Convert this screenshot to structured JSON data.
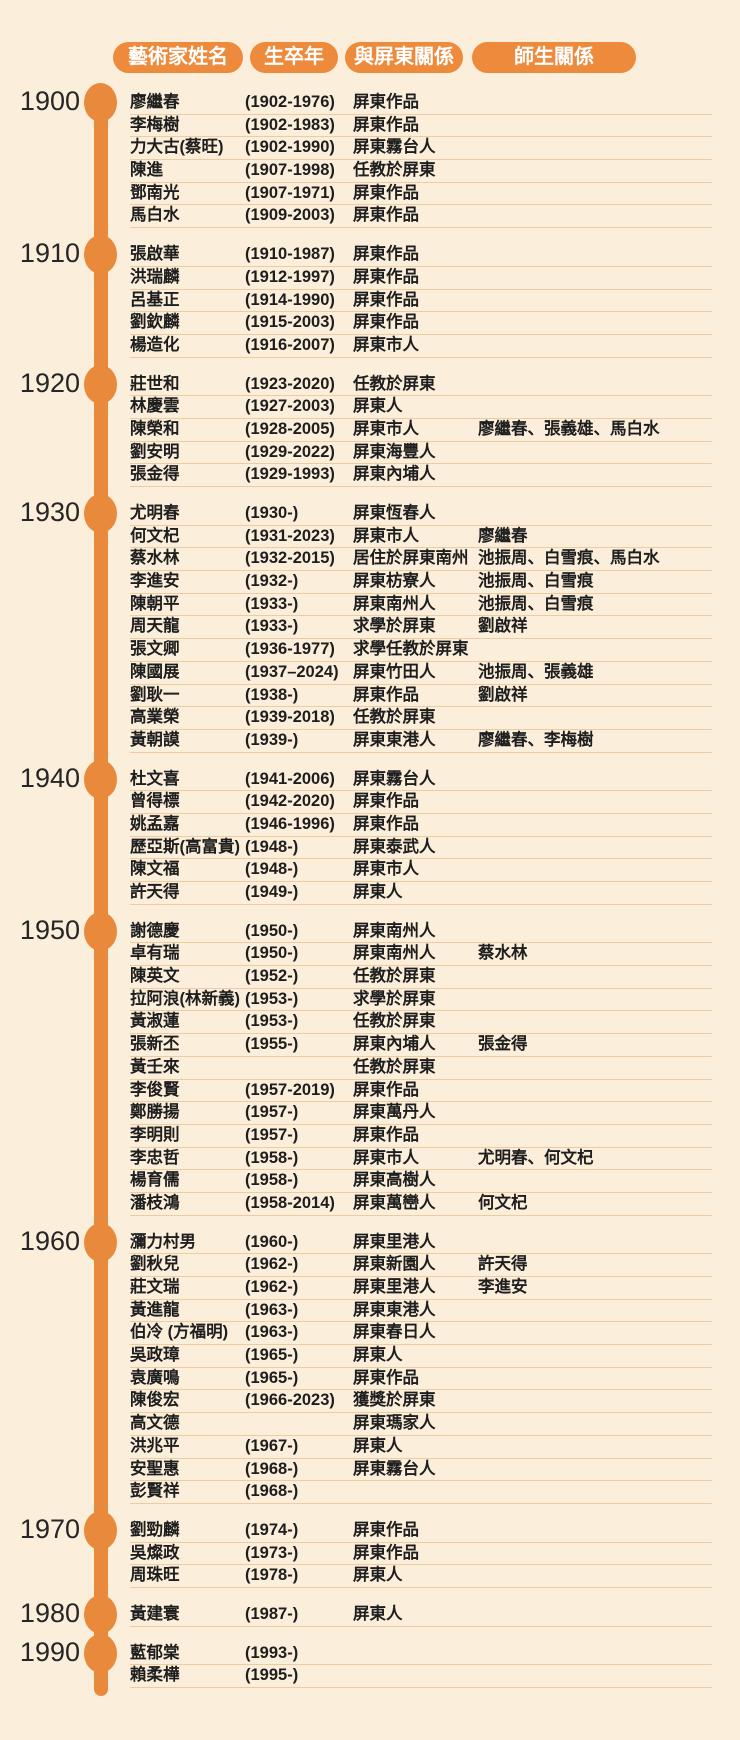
{
  "colors": {
    "background": "#FBEEDB",
    "pill_accent": "#ED8A3C",
    "timeline_accent": "#E8893C",
    "separator_line": "#EFCBA0",
    "text": "#1E1E1E",
    "year_label": "#262626"
  },
  "header": {
    "columns": [
      "藝術家姓名",
      "生卒年",
      "與屏東關係",
      "師生關係"
    ]
  },
  "timeline": {
    "decades": [
      {
        "decade": "1900",
        "rows": [
          {
            "name": "廖繼春",
            "years": "(1902-1976)",
            "relation": "屏東作品",
            "teachers": ""
          },
          {
            "name": "李梅樹",
            "years": "(1902-1983)",
            "relation": "屏東作品",
            "teachers": ""
          },
          {
            "name": "力大古(蔡旺)",
            "years": "(1902-1990)",
            "relation": "屏東霧台人",
            "teachers": ""
          },
          {
            "name": "陳進",
            "years": "(1907-1998)",
            "relation": "任教於屏東",
            "teachers": ""
          },
          {
            "name": "鄧南光",
            "years": "(1907-1971)",
            "relation": "屏東作品",
            "teachers": ""
          },
          {
            "name": "馬白水",
            "years": "(1909-2003)",
            "relation": "屏東作品",
            "teachers": ""
          }
        ]
      },
      {
        "decade": "1910",
        "rows": [
          {
            "name": "張啟華",
            "years": "(1910-1987)",
            "relation": "屏東作品",
            "teachers": ""
          },
          {
            "name": "洪瑞麟",
            "years": "(1912-1997)",
            "relation": "屏東作品",
            "teachers": ""
          },
          {
            "name": "呂基正",
            "years": "(1914-1990)",
            "relation": "屏東作品",
            "teachers": ""
          },
          {
            "name": "劉欽麟",
            "years": "(1915-2003)",
            "relation": "屏東作品",
            "teachers": ""
          },
          {
            "name": "楊造化",
            "years": "(1916-2007)",
            "relation": "屏東市人",
            "teachers": ""
          }
        ]
      },
      {
        "decade": "1920",
        "rows": [
          {
            "name": "莊世和",
            "years": "(1923-2020)",
            "relation": "任教於屏東",
            "teachers": ""
          },
          {
            "name": "林慶雲",
            "years": "(1927-2003)",
            "relation": "屏東人",
            "teachers": ""
          },
          {
            "name": "陳榮和",
            "years": "(1928-2005)",
            "relation": "屏東市人",
            "teachers": "廖繼春、張義雄、馬白水"
          },
          {
            "name": "劉安明",
            "years": "(1929-2022)",
            "relation": "屏東海豐人",
            "teachers": ""
          },
          {
            "name": "張金得",
            "years": "(1929-1993)",
            "relation": "屏東內埔人",
            "teachers": ""
          }
        ]
      },
      {
        "decade": "1930",
        "rows": [
          {
            "name": "尤明春",
            "years": "(1930-)",
            "relation": "屏東恆春人",
            "teachers": ""
          },
          {
            "name": "何文杞",
            "years": "(1931-2023)",
            "relation": "屏東市人",
            "teachers": "廖繼春"
          },
          {
            "name": "蔡水林",
            "years": "(1932-2015)",
            "relation": "居住於屏東南州",
            "teachers": "池振周、白雪痕、馬白水"
          },
          {
            "name": "李進安",
            "years": "(1932-)",
            "relation": "屏東枋寮人",
            "teachers": "池振周、白雪痕"
          },
          {
            "name": "陳朝平",
            "years": "(1933-)",
            "relation": "屏東南州人",
            "teachers": "池振周、白雪痕"
          },
          {
            "name": "周天龍",
            "years": "(1933-)",
            "relation": "求學於屏東",
            "teachers": "劉啟祥"
          },
          {
            "name": "張文卿",
            "years": "(1936-1977)",
            "relation": "求學任教於屏東",
            "teachers": ""
          },
          {
            "name": "陳國展",
            "years": "(1937–2024)",
            "relation": "屏東竹田人",
            "teachers": "池振周、張義雄"
          },
          {
            "name": "劉耿一",
            "years": "(1938-)",
            "relation": "屏東作品",
            "teachers": "劉啟祥"
          },
          {
            "name": "高業榮",
            "years": "(1939-2018)",
            "relation": "任教於屏東",
            "teachers": ""
          },
          {
            "name": "黃朝謨",
            "years": "(1939-)",
            "relation": "屏東東港人",
            "teachers": "廖繼春、李梅樹"
          }
        ]
      },
      {
        "decade": "1940",
        "rows": [
          {
            "name": "杜文喜",
            "years": "(1941-2006)",
            "relation": "屏東霧台人",
            "teachers": ""
          },
          {
            "name": "曾得標",
            "years": "(1942-2020)",
            "relation": "屏東作品",
            "teachers": ""
          },
          {
            "name": "姚孟嘉",
            "years": "(1946-1996)",
            "relation": "屏東作品",
            "teachers": ""
          },
          {
            "name": "歷亞斯(高富貴)",
            "years": "(1948-)",
            "relation": "屏東泰武人",
            "teachers": ""
          },
          {
            "name": "陳文福",
            "years": "(1948-)",
            "relation": "屏東市人",
            "teachers": ""
          },
          {
            "name": "許天得",
            "years": "(1949-)",
            "relation": "屏東人",
            "teachers": ""
          }
        ]
      },
      {
        "decade": "1950",
        "rows": [
          {
            "name": "謝德慶",
            "years": "(1950-)",
            "relation": "屏東南州人",
            "teachers": ""
          },
          {
            "name": "卓有瑞",
            "years": "(1950-)",
            "relation": "屏東南州人",
            "teachers": "蔡水林"
          },
          {
            "name": "陳英文",
            "years": "(1952-)",
            "relation": "任教於屏東",
            "teachers": ""
          },
          {
            "name": "拉阿浪(林新義)",
            "years": "(1953-)",
            "relation": "求學於屏東",
            "teachers": ""
          },
          {
            "name": "黃淑蓮",
            "years": "(1953-)",
            "relation": "任教於屏東",
            "teachers": ""
          },
          {
            "name": "張新丕",
            "years": "(1955-)",
            "relation": "屏東內埔人",
            "teachers": "張金得"
          },
          {
            "name": "黃壬來",
            "years": "",
            "relation": "任教於屏東",
            "teachers": ""
          },
          {
            "name": "李俊賢",
            "years": "(1957-2019)",
            "relation": "屏東作品",
            "teachers": ""
          },
          {
            "name": "鄭勝揚",
            "years": "(1957-)",
            "relation": "屏東萬丹人",
            "teachers": ""
          },
          {
            "name": "李明則",
            "years": "(1957-)",
            "relation": "屏東作品",
            "teachers": ""
          },
          {
            "name": "李忠哲",
            "years": "(1958-)",
            "relation": "屏東市人",
            "teachers": "尤明春、何文杞"
          },
          {
            "name": "楊育儒",
            "years": "(1958-)",
            "relation": "屏東高樹人",
            "teachers": ""
          },
          {
            "name": "潘枝鴻",
            "years": "(1958-2014)",
            "relation": "屏東萬巒人",
            "teachers": "何文杞"
          }
        ]
      },
      {
        "decade": "1960",
        "rows": [
          {
            "name": "瀰力村男",
            "years": "(1960-)",
            "relation": "屏東里港人",
            "teachers": ""
          },
          {
            "name": "劉秋兒",
            "years": "(1962-)",
            "relation": "屏東新園人",
            "teachers": "許天得"
          },
          {
            "name": "莊文瑞",
            "years": "(1962-)",
            "relation": "屏東里港人",
            "teachers": "李進安"
          },
          {
            "name": "黃進龍",
            "years": "(1963-)",
            "relation": "屏東東港人",
            "teachers": ""
          },
          {
            "name": "伯冷 (方福明)",
            "years": "(1963-)",
            "relation": "屏東春日人",
            "teachers": ""
          },
          {
            "name": "吳政璋",
            "years": "(1965-)",
            "relation": "屏東人",
            "teachers": ""
          },
          {
            "name": "袁廣鳴",
            "years": "(1965-)",
            "relation": "屏東作品",
            "teachers": ""
          },
          {
            "name": "陳俊宏",
            "years": "(1966-2023)",
            "relation": "獲獎於屏東",
            "teachers": ""
          },
          {
            "name": "高文德",
            "years": "",
            "relation": "屏東瑪家人",
            "teachers": ""
          },
          {
            "name": "洪兆平",
            "years": "(1967-)",
            "relation": "屏東人",
            "teachers": ""
          },
          {
            "name": "安聖惠",
            "years": "(1968-)",
            "relation": "屏東霧台人",
            "teachers": ""
          },
          {
            "name": "彭賢祥",
            "years": "(1968-)",
            "relation": "",
            "teachers": ""
          }
        ]
      },
      {
        "decade": "1970",
        "rows": [
          {
            "name": "劉勁麟",
            "years": "(1974-)",
            "relation": "屏東作品",
            "teachers": ""
          },
          {
            "name": "吳燦政",
            "years": "(1973-)",
            "relation": "屏東作品",
            "teachers": ""
          },
          {
            "name": "周珠旺",
            "years": "(1978-)",
            "relation": "屏東人",
            "teachers": ""
          }
        ]
      },
      {
        "decade": "1980",
        "rows": [
          {
            "name": "黃建寰",
            "years": "(1987-)",
            "relation": "屏東人",
            "teachers": ""
          }
        ]
      },
      {
        "decade": "1990",
        "rows": [
          {
            "name": "藍郁棠",
            "years": "(1993-)",
            "relation": "",
            "teachers": ""
          },
          {
            "name": "賴柔樺",
            "years": "(1995-)",
            "relation": "",
            "teachers": ""
          }
        ]
      }
    ]
  }
}
